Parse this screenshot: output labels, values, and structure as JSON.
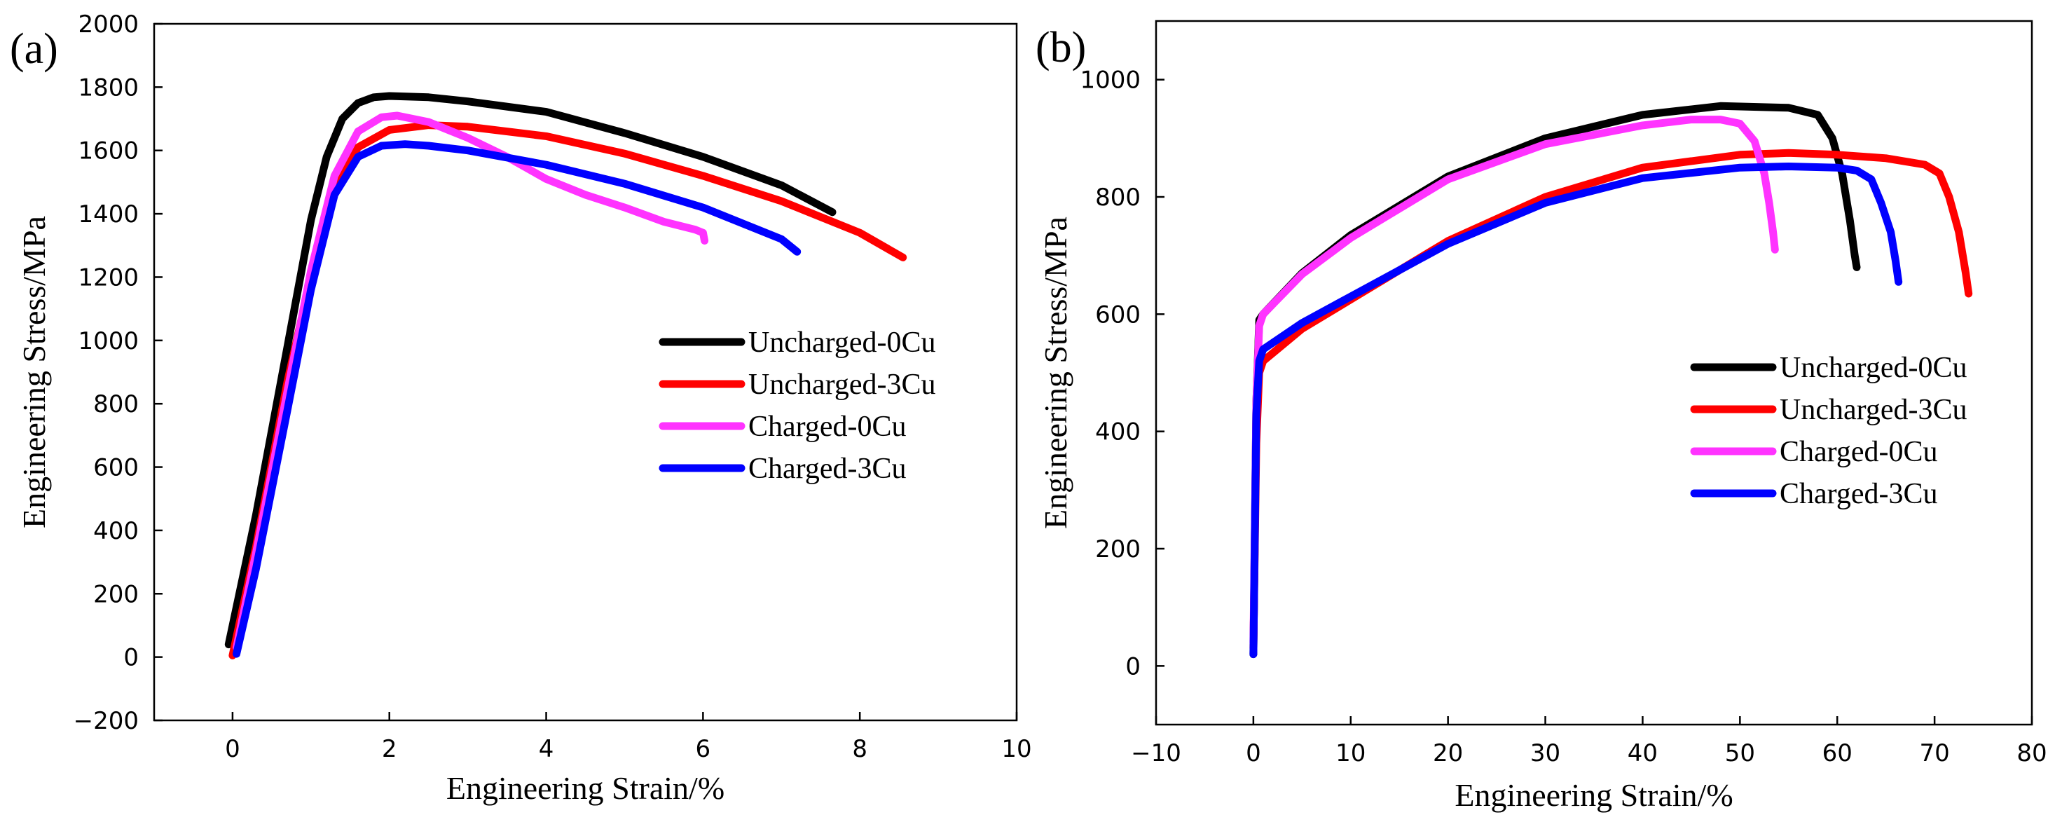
{
  "colors": {
    "uncharged_0cu": "#000000",
    "uncharged_3cu": "#ff0000",
    "charged_0cu": "#ff33ff",
    "charged_3cu": "#0000ff",
    "axes": "#000000",
    "background": "#ffffff"
  },
  "chart_data": [
    {
      "panel_label": "(a)",
      "type": "line",
      "title": "",
      "xlabel": "Engineering Strain/%",
      "ylabel": "Engineering Stress/MPa",
      "xlim": [
        -1,
        10
      ],
      "ylim": [
        -200,
        2000
      ],
      "xticks": [
        0,
        2,
        4,
        6,
        8,
        10
      ],
      "yticks": [
        -200,
        0,
        200,
        400,
        600,
        800,
        1000,
        1200,
        1400,
        1600,
        1800,
        2000
      ],
      "xtick_labels": [
        "0",
        "2",
        "4",
        "6",
        "8",
        "10"
      ],
      "ytick_labels": [
        "−200",
        "0",
        "200",
        "400",
        "600",
        "800",
        "1000",
        "1200",
        "1400",
        "1600",
        "1800",
        "2000"
      ],
      "legend_position": "center-right",
      "series": [
        {
          "name": "Uncharged-0Cu",
          "color_key": "uncharged_0cu",
          "x": [
            -0.05,
            0.3,
            0.7,
            1.0,
            1.2,
            1.4,
            1.6,
            1.8,
            2.0,
            2.5,
            3.0,
            4.0,
            5.0,
            6.0,
            7.0,
            7.65
          ],
          "y": [
            40,
            450,
            980,
            1380,
            1580,
            1700,
            1750,
            1768,
            1772,
            1768,
            1755,
            1722,
            1655,
            1580,
            1490,
            1405
          ]
        },
        {
          "name": "Uncharged-3Cu",
          "color_key": "uncharged_3cu",
          "x": [
            0.0,
            0.3,
            0.7,
            1.0,
            1.3,
            1.6,
            2.0,
            2.5,
            3.0,
            4.0,
            5.0,
            6.0,
            7.0,
            8.0,
            8.55
          ],
          "y": [
            5,
            350,
            870,
            1200,
            1480,
            1610,
            1665,
            1680,
            1675,
            1645,
            1590,
            1520,
            1440,
            1340,
            1262
          ]
        },
        {
          "name": "Charged-0Cu",
          "color_key": "charged_0cu",
          "x": [
            0.05,
            0.3,
            0.7,
            1.0,
            1.3,
            1.6,
            1.9,
            2.1,
            2.5,
            3.0,
            3.5,
            4.0,
            4.5,
            5.0,
            5.5,
            5.9,
            6.0,
            6.02
          ],
          "y": [
            30,
            330,
            840,
            1220,
            1520,
            1660,
            1705,
            1710,
            1690,
            1640,
            1580,
            1510,
            1460,
            1420,
            1375,
            1350,
            1340,
            1315
          ]
        },
        {
          "name": "Charged-3Cu",
          "color_key": "charged_3cu",
          "x": [
            0.05,
            0.3,
            0.7,
            1.0,
            1.3,
            1.6,
            1.9,
            2.2,
            2.5,
            3.0,
            4.0,
            5.0,
            6.0,
            7.0,
            7.2
          ],
          "y": [
            10,
            280,
            780,
            1160,
            1460,
            1580,
            1615,
            1620,
            1615,
            1600,
            1555,
            1495,
            1420,
            1320,
            1280
          ]
        }
      ]
    },
    {
      "panel_label": "(b)",
      "type": "line",
      "title": "",
      "xlabel": "Engineering Strain/%",
      "ylabel": "Engineering Stress/MPa",
      "xlim": [
        -10,
        80
      ],
      "ylim": [
        -100,
        1100
      ],
      "xticks": [
        -10,
        0,
        10,
        20,
        30,
        40,
        50,
        60,
        70,
        80
      ],
      "yticks": [
        0,
        200,
        400,
        600,
        800,
        1000
      ],
      "xtick_labels": [
        "−10",
        "0",
        "10",
        "20",
        "30",
        "40",
        "50",
        "60",
        "70",
        "80"
      ],
      "ytick_labels": [
        "0",
        "200",
        "400",
        "600",
        "800",
        "1000"
      ],
      "legend_position": "center-right",
      "series": [
        {
          "name": "Uncharged-0Cu",
          "color_key": "uncharged_0cu",
          "x": [
            0,
            0.3,
            0.6,
            1,
            5,
            10,
            20,
            30,
            40,
            48,
            55,
            58,
            59.5,
            60.5,
            61.3,
            61.8,
            62
          ],
          "y": [
            20,
            450,
            590,
            600,
            670,
            735,
            835,
            900,
            940,
            955,
            952,
            940,
            900,
            840,
            760,
            700,
            680
          ]
        },
        {
          "name": "Uncharged-3Cu",
          "color_key": "uncharged_3cu",
          "x": [
            0,
            0.3,
            0.6,
            1,
            5,
            10,
            20,
            30,
            40,
            50,
            55,
            60,
            65,
            69,
            70.5,
            71.5,
            72.5,
            73.2,
            73.5
          ],
          "y": [
            30,
            380,
            500,
            520,
            575,
            625,
            725,
            800,
            850,
            872,
            875,
            872,
            866,
            855,
            840,
            800,
            740,
            670,
            635
          ]
        },
        {
          "name": "Charged-0Cu",
          "color_key": "charged_0cu",
          "x": [
            0,
            0.3,
            0.6,
            1,
            5,
            10,
            20,
            30,
            40,
            45,
            48,
            50,
            51.5,
            52.5,
            53,
            53.4,
            53.6
          ],
          "y": [
            40,
            450,
            580,
            600,
            668,
            730,
            830,
            890,
            922,
            932,
            932,
            925,
            895,
            840,
            790,
            740,
            710
          ]
        },
        {
          "name": "Charged-3Cu",
          "color_key": "charged_3cu",
          "x": [
            0,
            0.3,
            0.6,
            1,
            5,
            10,
            20,
            30,
            40,
            50,
            55,
            60,
            62,
            63.5,
            64.5,
            65.5,
            66,
            66.3
          ],
          "y": [
            20,
            430,
            520,
            540,
            585,
            630,
            720,
            790,
            832,
            850,
            852,
            850,
            845,
            830,
            790,
            740,
            690,
            655
          ]
        }
      ]
    }
  ]
}
